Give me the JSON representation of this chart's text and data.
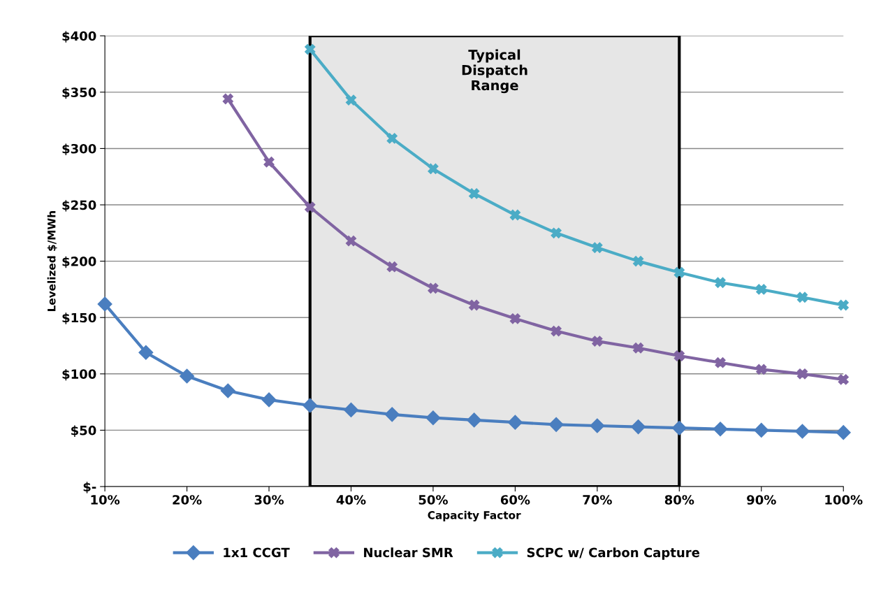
{
  "chart_data": {
    "type": "line",
    "xlabel": "Capacity Factor",
    "ylabel": "Levelized $/MWh",
    "x": [
      10,
      15,
      20,
      25,
      30,
      35,
      40,
      45,
      50,
      55,
      60,
      65,
      70,
      75,
      80,
      85,
      90,
      95,
      100
    ],
    "series": [
      {
        "name": "1x1 CCGT",
        "color": "#4a7ebf",
        "marker": "diamond",
        "values": [
          162,
          119,
          98,
          85,
          77,
          72,
          68,
          64,
          61,
          59,
          57,
          55,
          54,
          53,
          52,
          51,
          50,
          49,
          48
        ]
      },
      {
        "name": "Nuclear SMR",
        "color": "#8064a2",
        "marker": "cross",
        "values": [
          null,
          null,
          null,
          344,
          288,
          248,
          218,
          195,
          176,
          161,
          149,
          138,
          129,
          123,
          116,
          110,
          104,
          100,
          95
        ]
      },
      {
        "name": "SCPC w/ Carbon Capture",
        "color": "#4bacc6",
        "marker": "cross",
        "values": [
          null,
          null,
          null,
          null,
          null,
          388,
          343,
          309,
          282,
          260,
          241,
          225,
          212,
          200,
          190,
          181,
          175,
          168,
          161
        ]
      }
    ],
    "xlim": [
      10,
      100
    ],
    "xticks": [
      {
        "value": 10,
        "label": "10%"
      },
      {
        "value": 20,
        "label": "20%"
      },
      {
        "value": 30,
        "label": "30%"
      },
      {
        "value": 40,
        "label": "40%"
      },
      {
        "value": 50,
        "label": "50%"
      },
      {
        "value": 60,
        "label": "60%"
      },
      {
        "value": 70,
        "label": "70%"
      },
      {
        "value": 80,
        "label": "80%"
      },
      {
        "value": 90,
        "label": "90%"
      },
      {
        "value": 100,
        "label": "100%"
      }
    ],
    "ylim": [
      0,
      400
    ],
    "yticks": [
      {
        "value": 0,
        "label": "$-"
      },
      {
        "value": 50,
        "label": "$50"
      },
      {
        "value": 100,
        "label": "$100"
      },
      {
        "value": 150,
        "label": "$150"
      },
      {
        "value": 200,
        "label": "$200"
      },
      {
        "value": 250,
        "label": "$250"
      },
      {
        "value": 300,
        "label": "$300"
      },
      {
        "value": 350,
        "label": "$350"
      },
      {
        "value": 400,
        "label": "$400"
      }
    ],
    "bands": [
      {
        "axis": "x",
        "from": 35,
        "to": 80,
        "label": "Typical\nDispatch\nRange",
        "color": "#e6e6e6"
      }
    ],
    "grid": "y",
    "legend": "bottom",
    "line_style": "solid"
  }
}
